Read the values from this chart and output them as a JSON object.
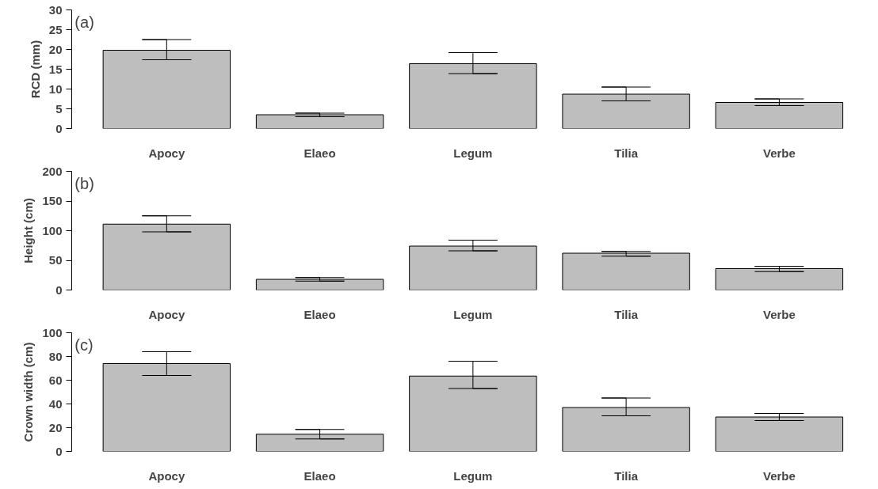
{
  "chart_data": [
    {
      "type": "bar",
      "categories": [
        "Apocy",
        "Elaeo",
        "Legum",
        "Tilia",
        "Verbe"
      ],
      "values": [
        19.8,
        3.5,
        16.4,
        8.7,
        6.6
      ],
      "color": "#bebebe",
      "errors": [
        [
          17.4,
          22.5
        ],
        [
          3.0,
          3.9
        ],
        [
          13.9,
          19.2
        ],
        [
          7.0,
          10.5
        ],
        [
          5.8,
          7.5
        ]
      ],
      "ylabel": "RCD (mm)",
      "annotations": [
        "(a)"
      ],
      "ylim": [
        0,
        30
      ],
      "yticks": [
        0,
        5,
        10,
        15,
        20,
        25,
        30
      ],
      "grid": false
    },
    {
      "type": "bar",
      "categories": [
        "Apocy",
        "Elaeo",
        "Legum",
        "Tilia",
        "Verbe"
      ],
      "values": [
        111,
        18,
        74,
        62,
        36
      ],
      "color": "#bebebe",
      "errors": [
        [
          98,
          125
        ],
        [
          15,
          21
        ],
        [
          66,
          84
        ],
        [
          57,
          65
        ],
        [
          31,
          40
        ]
      ],
      "ylabel": "Height (cm)",
      "annotations": [
        "(b)"
      ],
      "ylim": [
        0,
        200
      ],
      "yticks": [
        0,
        50,
        100,
        150,
        200
      ],
      "grid": false
    },
    {
      "type": "bar",
      "categories": [
        "Apocy",
        "Elaeo",
        "Legum",
        "Tilia",
        "Verbe"
      ],
      "values": [
        74,
        14.5,
        63.5,
        37,
        29
      ],
      "color": "#bebebe",
      "errors": [
        [
          64,
          84
        ],
        [
          10.5,
          18.5
        ],
        [
          53,
          76
        ],
        [
          30,
          45
        ],
        [
          26,
          32
        ]
      ],
      "ylabel": "Crown width (cm)",
      "annotations": [
        "(c)"
      ],
      "ylim": [
        0,
        100
      ],
      "yticks": [
        0,
        20,
        40,
        60,
        80,
        100
      ],
      "grid": false
    }
  ]
}
